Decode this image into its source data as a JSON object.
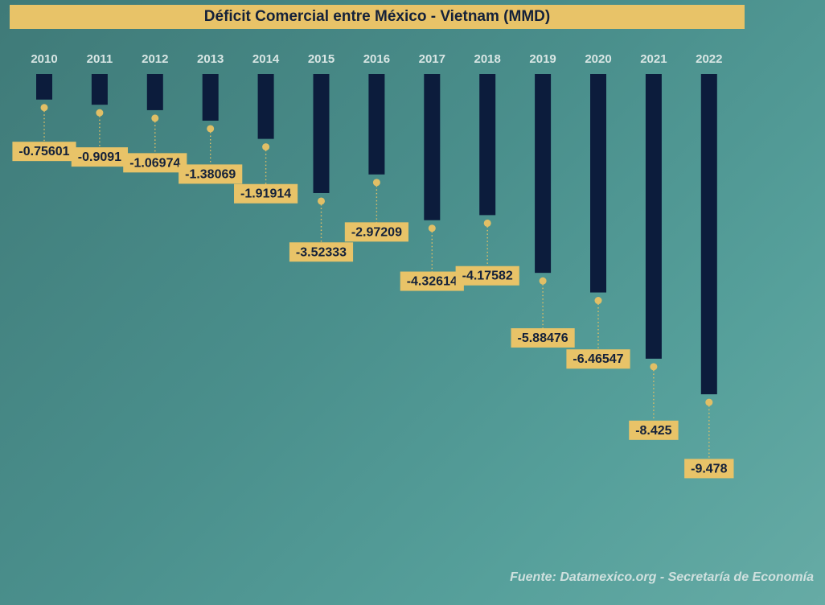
{
  "title": "Déficit Comercial entre México - Vietnam (MMD)",
  "source": "Fuente: Datamexico.org - Secretaría de Economía",
  "colors": {
    "bar": "#0c1c3c",
    "label_bg": "#e8c368",
    "dot": "#e1bf66",
    "text_dark": "#14213a",
    "year_text": "#d8e6e4"
  },
  "chart_data": {
    "type": "bar",
    "title": "Déficit Comercial entre México - Vietnam (MMD)",
    "categories": [
      "2010",
      "2011",
      "2012",
      "2013",
      "2014",
      "2015",
      "2016",
      "2017",
      "2018",
      "2019",
      "2020",
      "2021",
      "2022"
    ],
    "values": [
      -0.75601,
      -0.9091,
      -1.06974,
      -1.38069,
      -1.91914,
      -3.52333,
      -2.97209,
      -4.32614,
      -4.17582,
      -5.88476,
      -6.46547,
      -8.425,
      -9.478
    ],
    "value_labels": [
      "-0.75601",
      "-0.9091",
      "-1.06974",
      "-1.38069",
      "-1.91914",
      "-3.52333",
      "-2.97209",
      "-4.32614",
      "-4.17582",
      "-5.88476",
      "-6.46547",
      "-8.425",
      "-9.478"
    ],
    "xlabel": "",
    "ylabel": "",
    "ylim": [
      -10,
      0
    ],
    "grid": false,
    "legend": "none"
  }
}
